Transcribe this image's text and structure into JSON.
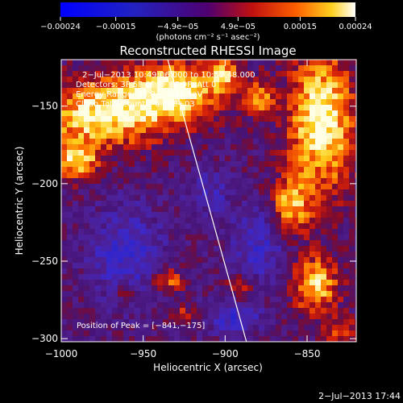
{
  "chart_data": {
    "type": "heatmap",
    "title": "Reconstructed RHESSI Image",
    "xlabel": "Heliocentric X (arcsec)",
    "ylabel": "Heliocentric Y (arcsec)",
    "xlim": [
      -1000,
      -820
    ],
    "ylim": [
      -302,
      -120
    ],
    "x_ticks": [
      -1000,
      -950,
      -900,
      -850
    ],
    "y_ticks": [
      -150,
      -200,
      -250,
      -300
    ],
    "x_tick_labels": [
      "−1000",
      "−950",
      "−900",
      "−850"
    ],
    "y_tick_labels": [
      "−150",
      "−200",
      "−250",
      "−300"
    ],
    "colorbar": {
      "range": [
        -0.00024,
        0.00024
      ],
      "ticks": [
        -0.00024,
        -0.00015,
        -4.9e-05,
        4.9e-05,
        0.00015,
        0.00024
      ],
      "tick_labels": [
        "−0.00024",
        "−0.00015",
        "−4.9e−05",
        "4.9e−05",
        "0.00015",
        "0.00024"
      ],
      "unit_label": "(photons cm⁻² s⁻¹ asec⁻²)"
    },
    "annotations": [
      "2−Jul−2013 10:49:06.000 to 10:52:48.000",
      "Detectors: 3F 5F 6F 7F 8F 9F, Att 0",
      "Energy Range: 25.0 − 50.0 keV",
      "Clean     Total counts: 6.39E+03"
    ],
    "peak_label": "Position of Peak = [−841,−175]",
    "peak": [
      -841,
      -175
    ],
    "limb_line": [
      [
        -935,
        -120
      ],
      [
        -887,
        -302
      ]
    ],
    "hotspots": [
      {
        "x": -975,
        "y": -155,
        "sx": 40,
        "sy": 22,
        "a": 1.0
      },
      {
        "x": -930,
        "y": -140,
        "sx": 28,
        "sy": 18,
        "a": 1.0
      },
      {
        "x": -990,
        "y": -185,
        "sx": 12,
        "sy": 12,
        "a": 0.9
      },
      {
        "x": -900,
        "y": -130,
        "sx": 10,
        "sy": 10,
        "a": 0.7
      },
      {
        "x": -841,
        "y": -160,
        "sx": 20,
        "sy": 45,
        "a": 1.1
      },
      {
        "x": -860,
        "y": -215,
        "sx": 12,
        "sy": 18,
        "a": 0.8
      },
      {
        "x": -845,
        "y": -265,
        "sx": 14,
        "sy": 18,
        "a": 0.9
      },
      {
        "x": -935,
        "y": -262,
        "sx": 10,
        "sy": 8,
        "a": 0.7
      },
      {
        "x": -890,
        "y": -268,
        "sx": 9,
        "sy": 9,
        "a": 0.6
      },
      {
        "x": -960,
        "y": -270,
        "sx": 7,
        "sy": 6,
        "a": 0.5
      },
      {
        "x": -925,
        "y": -285,
        "sx": 7,
        "sy": 6,
        "a": 0.5
      },
      {
        "x": -830,
        "y": -295,
        "sx": 10,
        "sy": 8,
        "a": 0.6
      },
      {
        "x": -878,
        "y": -145,
        "sx": 10,
        "sy": 12,
        "a": 0.6
      }
    ],
    "coldspots": [
      {
        "x": -960,
        "y": -245,
        "sx": 22,
        "sy": 30,
        "a": 0.6
      },
      {
        "x": -880,
        "y": -240,
        "sx": 18,
        "sy": 25,
        "a": 0.5
      },
      {
        "x": -895,
        "y": -285,
        "sx": 16,
        "sy": 12,
        "a": 0.6
      },
      {
        "x": -910,
        "y": -205,
        "sx": 14,
        "sy": 14,
        "a": 0.4
      }
    ]
  },
  "timestamp": "2−Jul−2013 17:44"
}
